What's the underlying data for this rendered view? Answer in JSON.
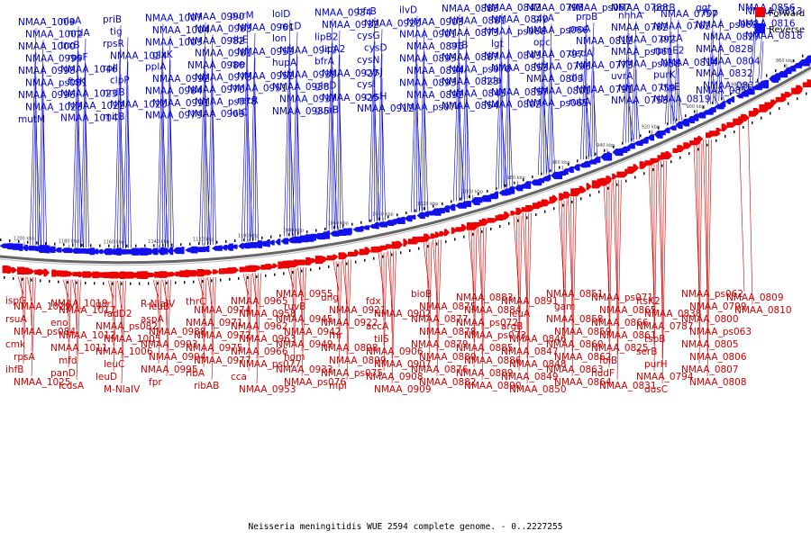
{
  "caption": "Neisseria meningitidis WUE 2594 complete genome. - 0..2227255",
  "legend": [
    {
      "label": "Forward",
      "color": "#ee0000"
    },
    {
      "label": "Reverse",
      "color": "#1111ee"
    }
  ],
  "colors": {
    "forward_text": "#cc0000",
    "reverse_text": "#0000cc",
    "backbone": "#555555"
  },
  "ticks": [
    "1200 kbp",
    "1180 kbp",
    "1160 kbp",
    "1140 kbp",
    "1120 kbp",
    "1100 kbp",
    "1080 kbp",
    "1060 kbp",
    "1040 kbp",
    "1020 kbp",
    "1000 kbp",
    "980 kbp",
    "960 kbp",
    "940 kbp",
    "920 kbp",
    "900 kbp",
    "880 kbp",
    "860 kbp"
  ],
  "reverse_labels": [
    "NMAA_1009",
    "NMAA_1002",
    "NMAA_1000",
    "NMAA_0999",
    "NMAA_0998",
    "NMAA_ps081",
    "NMAA_0996",
    "NMAA_1028",
    "mutM",
    "nlaA",
    "nrdA",
    "trxB",
    "rpsF",
    "NMAA_1046",
    "ftsK",
    "NMAA_1023",
    "NMAA_1022",
    "NMAA_1014",
    "priB",
    "tig",
    "rpsR",
    "NMAA_1034",
    "rplI",
    "clpP",
    "nrdB",
    "NMAA_1020",
    "mitB",
    "NMAA_1007",
    "NMAA_1004",
    "NMAA_1003",
    "glxK",
    "pplA",
    "NMAA_0992",
    "NMAA_0984",
    "NMAA_0991",
    "NMAA_0979",
    "NMAA_0990",
    "NMAA_0983",
    "NMAA_0982",
    "NMAA_0981",
    "NMAA_0980",
    "NMAA_0973",
    "NMAA_0970",
    "NMAA_ps078",
    "NMAA_0969",
    "purM",
    "NMAA_0961",
    "ribE",
    "NMAA_0959",
    "rpe",
    "NMAA_0952",
    "NMAA_0951",
    "recR",
    "lolC",
    "lolD",
    "recD",
    "lon",
    "NMAA_0940",
    "hupA",
    "NMAA_0939",
    "NMAA_0938",
    "NMAA_0937",
    "NMAA_0935",
    "NMAA_0934",
    "NMAA_0932",
    "lipB2",
    "lipA2",
    "bfrA",
    "NMAA_0927",
    "glnD",
    "NMAA_0925",
    "guaB",
    "bfrB",
    "NMAA_0920",
    "cysG",
    "cysD",
    "cysN",
    "cysJ",
    "cysI",
    "cysH",
    "NMAA_0912",
    "ilvD",
    "NMAA_0903",
    "NMAA_0901",
    "NMAA_0896",
    "NMAA_0895",
    "NMAA_0894",
    "NMAA_0893",
    "NMAA_0892",
    "NMAA_ps074",
    "NMAA_0888",
    "NMAA_0881",
    "NMAA_0873",
    "crtB",
    "NMAA_0887",
    "NMAA_ps070",
    "NMAA_0823",
    "NMAA_0845",
    "NMAA_0854",
    "NMAA_0842",
    "NMAA_0840",
    "NMAA_ps068",
    "lgt",
    "NMAA_0843",
    "NMAA_0853",
    "hda",
    "NMAA_0857",
    "NMAA_0802",
    "NMAA_0798",
    "glyA",
    "NMAA_ps066",
    "opc",
    "NMAA_0797",
    "NMAA_0796",
    "NMAA_0803",
    "NMAA_0801",
    "NMAA_ps065",
    "NMAA_ps067",
    "proB",
    "proA",
    "NMAA_0812",
    "dedA",
    "NMAA_0773",
    "dld",
    "NMAA_0791",
    "rubA",
    "NMAA_0788",
    "nhhA",
    "NMAA_0782",
    "NMAA_0792",
    "NMAA_ps061",
    "NMAA_ps058",
    "uvrA",
    "NMAA_0759",
    "NMAA_0758",
    "pntB",
    "NMAA_0757",
    "NMAA_0762",
    "pntA",
    "rpmE2",
    "NMAA_0814",
    "purK",
    "trpE",
    "NMAA_0819",
    "ggt",
    "fbp",
    "NMAA_ps069",
    "NMAA_0827",
    "NMAA_0828",
    "NMAA_0804",
    "NMAA_0832",
    "NMAA_0833",
    "NMAA_0855",
    "NMAA_0856",
    "NMAA_0813",
    "NMAA_0816",
    "NMAA_0818"
  ],
  "forward_labels": [
    "ispG",
    "NMAA_1029",
    "rsuA",
    "NMAA_ps084",
    "cmk",
    "rpsA",
    "ihfB",
    "NMAA_1025",
    "NMAA_1019",
    "NMAA_1017",
    "eno",
    "NMAA_1012",
    "NMAA_1011",
    "mfd",
    "panD",
    "lcdsA",
    "gcr",
    "fadD2",
    "NMAA_ps082",
    "NMAA_1005",
    "NMAA_1006",
    "leuC",
    "leuD",
    "M-NlaIV",
    "R-NlaIV",
    "leuB",
    "aspA",
    "NMAA_0988",
    "NMAA_0993",
    "NMAA_0994",
    "NMAA_0995",
    "fpr",
    "thrC",
    "NMAA_0974",
    "NMAA_0971",
    "NMAA_0972",
    "NMAA_0975",
    "NMAA_0977",
    "ribA",
    "ribAB",
    "NMAA_0965",
    "NMAA_0958",
    "NMAA_0962",
    "NMAA_0963",
    "NMAA_0966",
    "NMAA_ps077",
    "cca",
    "NMAA_0953",
    "NMAA_0955",
    "ruvB",
    "NMAA_0945",
    "NMAA_0942",
    "NMAA_0949",
    "hom",
    "NMAA_0933",
    "NMAA_ps076",
    "ung",
    "NMAA_0921",
    "NMAA_0922",
    "rnr",
    "NMAA_0898",
    "NMAA_0899",
    "NMAA_ps075",
    "mpl",
    "fdx",
    "NMAA_0902",
    "accA",
    "tilS",
    "NMAA_0906",
    "NMAA_0907",
    "NMAA_0908",
    "NMAA_0909",
    "bioB",
    "NMAA_0875",
    "NMAA_0877",
    "NMAA_0878",
    "NMAA_0879",
    "NMAA_0880",
    "NMAA_0876",
    "NMAA_0882",
    "NMAA_0883",
    "NMAA_0884",
    "NMAA_ps072",
    "NMAA_ps073",
    "NMAA_0885",
    "NMAA_0886",
    "NMAA_0889",
    "NMAA_0890",
    "NMAA_0891",
    "leuA",
    "argB",
    "NMAA_0846",
    "NMAA_0847",
    "NMAA_0848",
    "NMAA_0849",
    "NMAA_0850",
    "NMAA_0851",
    "gam",
    "NMAA_0858",
    "NMAA_0859",
    "NMAA_0860",
    "NMAA_0862",
    "NMAA_0863",
    "NMAA_0864",
    "NMAA_ps071",
    "NMAA_0865",
    "NMAA_0866",
    "NMAA_0861",
    "NMAA_0825",
    "folB",
    "nudF",
    "NMAA_0831",
    "ftsK2",
    "NMAA_0838",
    "NMAA_0787",
    "tspB",
    "serB",
    "purH",
    "NMAA_0794",
    "dusC",
    "NMAA_ps062",
    "NMAA_0799",
    "NMAA_0800",
    "NMAA_ps063",
    "NMAA_0805",
    "NMAA_0806",
    "NMAA_0807",
    "NMAA_0808",
    "NMAA_0809",
    "NMAA_0810"
  ]
}
